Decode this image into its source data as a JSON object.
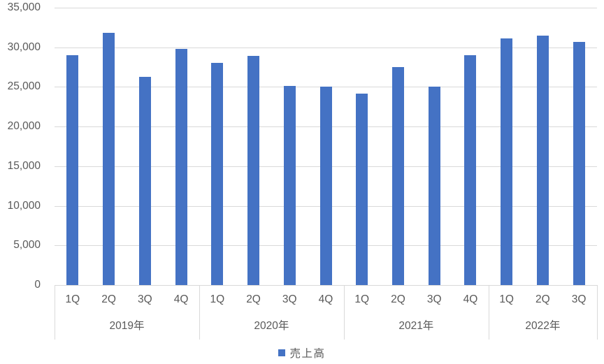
{
  "chart_data": {
    "type": "bar",
    "title": "",
    "legend": {
      "label": "売上高",
      "position": "bottom-center",
      "marker_color": "#4472C4"
    },
    "ylim": [
      0,
      35000
    ],
    "ytick_step": 5000,
    "ytick_labels": [
      "0",
      "5,000",
      "10,000",
      "15,000",
      "20,000",
      "25,000",
      "30,000",
      "35,000"
    ],
    "grid": "horizontal-major",
    "groups": [
      {
        "year": "2019年",
        "quarters": [
          "1Q",
          "2Q",
          "3Q",
          "4Q"
        ],
        "values": [
          29000,
          31800,
          26300,
          29800
        ]
      },
      {
        "year": "2020年",
        "quarters": [
          "1Q",
          "2Q",
          "3Q",
          "4Q"
        ],
        "values": [
          28000,
          28900,
          25100,
          25000
        ]
      },
      {
        "year": "2021年",
        "quarters": [
          "1Q",
          "2Q",
          "3Q",
          "4Q"
        ],
        "values": [
          24200,
          27500,
          25000,
          29000
        ]
      },
      {
        "year": "2022年",
        "quarters": [
          "1Q",
          "2Q",
          "3Q"
        ],
        "values": [
          31100,
          31500,
          30700
        ]
      }
    ],
    "series_name": "売上高",
    "colors": {
      "bar": "#4472C4",
      "gridline": "#D9D9D9",
      "axis_line": "#D9D9D9",
      "text": "#595959"
    }
  }
}
